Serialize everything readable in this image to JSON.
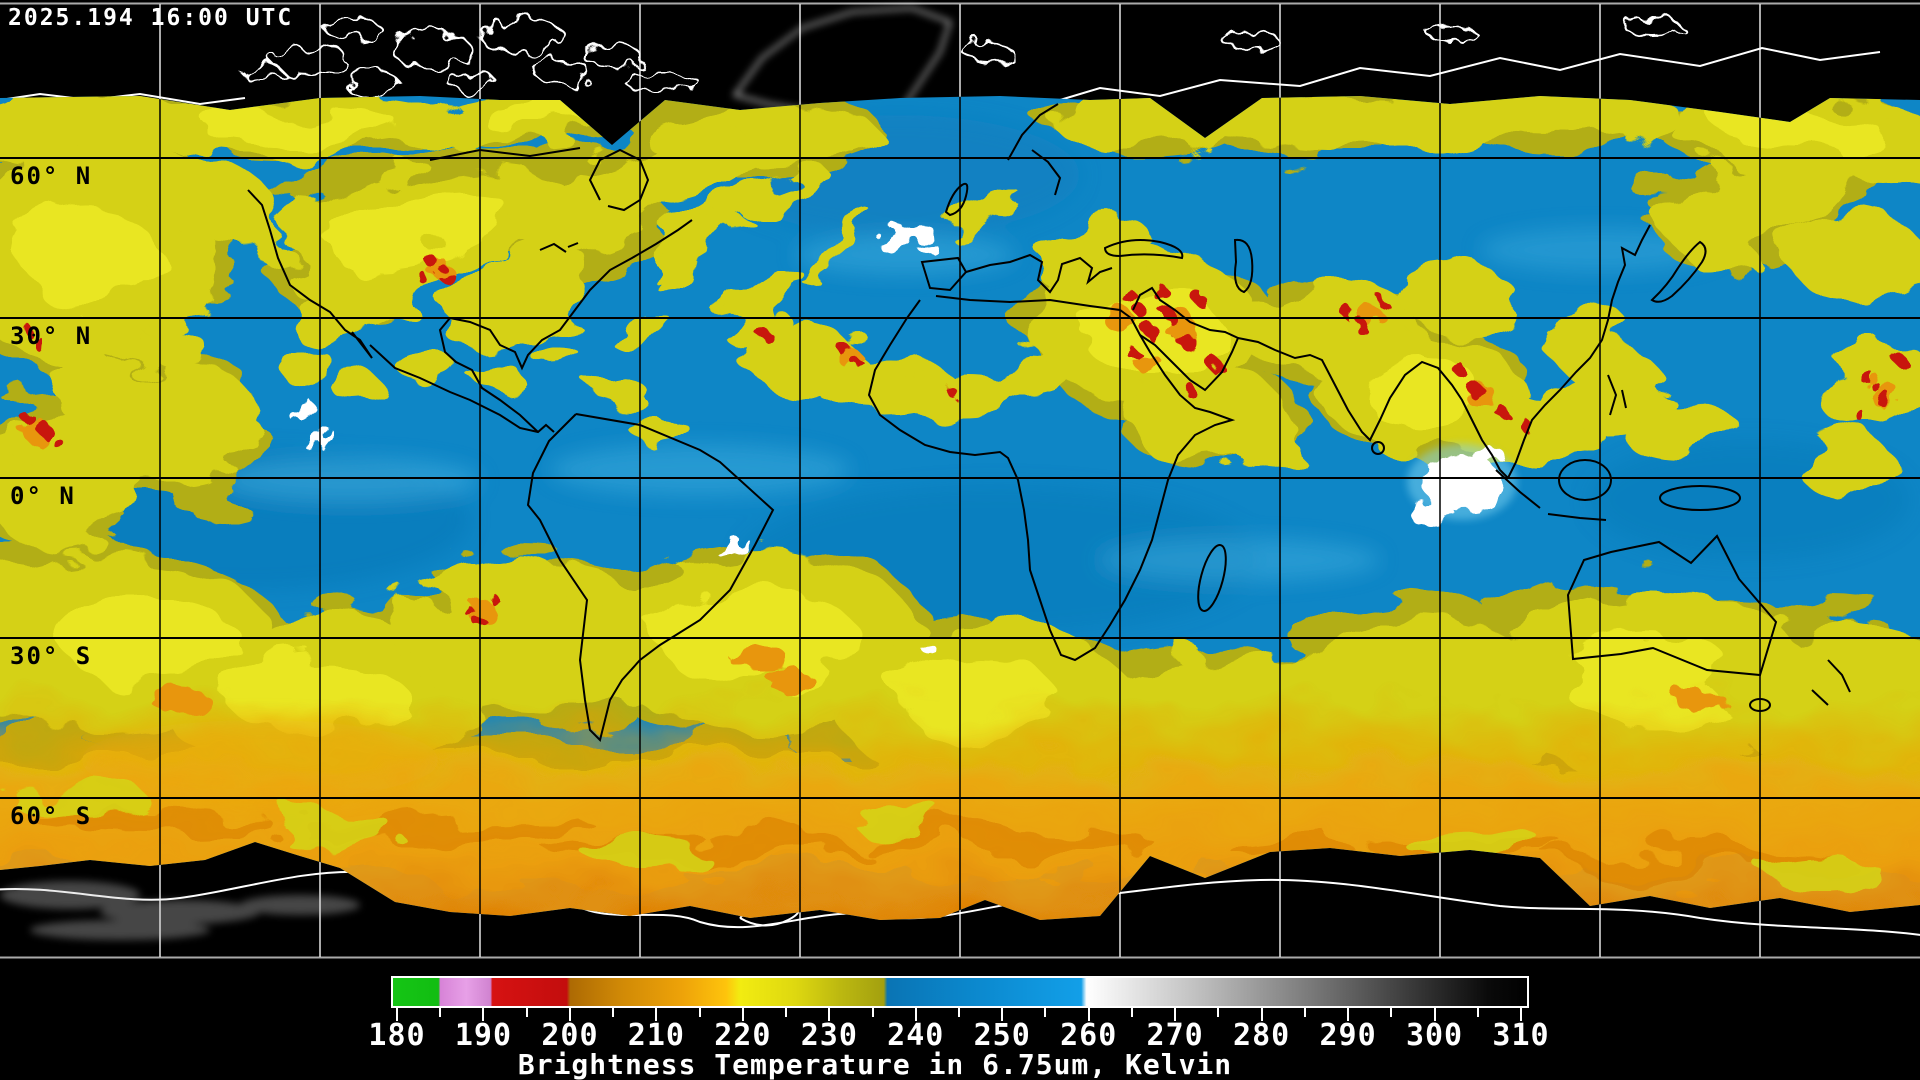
{
  "header": {
    "timestamp": "2025.194 16:00 UTC"
  },
  "map": {
    "latitude_labels": [
      "60° N",
      "30° N",
      "0° N",
      "30° S",
      "60° S"
    ],
    "grid": {
      "lon_step_deg": 30,
      "lat_step_deg": 30
    }
  },
  "colorbar": {
    "caption": "Brightness Temperature in 6.75um, Kelvin",
    "units": "Kelvin",
    "min": 180,
    "max": 310,
    "minor_tick_step": 5,
    "major_tick_step": 10,
    "major_tick_labels": [
      "180",
      "190",
      "200",
      "210",
      "220",
      "230",
      "240",
      "250",
      "260",
      "270",
      "280",
      "290",
      "300",
      "310"
    ],
    "gradient_stops": [
      {
        "value": 179.4,
        "color": "#15c515"
      },
      {
        "value": 184.8,
        "color": "#12bd12"
      },
      {
        "value": 185.0,
        "color": "#d783d7"
      },
      {
        "value": 188.0,
        "color": "#e7a0e7"
      },
      {
        "value": 190.8,
        "color": "#d083d0"
      },
      {
        "value": 191.0,
        "color": "#d61212"
      },
      {
        "value": 199.6,
        "color": "#c30d0d"
      },
      {
        "value": 200.0,
        "color": "#ad6a04"
      },
      {
        "value": 206.0,
        "color": "#d18a06"
      },
      {
        "value": 213.0,
        "color": "#eea309"
      },
      {
        "value": 218.0,
        "color": "#fec40c"
      },
      {
        "value": 219.6,
        "color": "#f2ec11"
      },
      {
        "value": 226.0,
        "color": "#ded810"
      },
      {
        "value": 231.0,
        "color": "#bdb910"
      },
      {
        "value": 236.2,
        "color": "#a3a00f"
      },
      {
        "value": 236.6,
        "color": "#0a74b4"
      },
      {
        "value": 246.0,
        "color": "#0b87cc"
      },
      {
        "value": 259.0,
        "color": "#129fe8"
      },
      {
        "value": 259.6,
        "color": "#ffffff"
      },
      {
        "value": 272.0,
        "color": "#c2c2c2"
      },
      {
        "value": 285.0,
        "color": "#7c7c7c"
      },
      {
        "value": 297.0,
        "color": "#3a3a3a"
      },
      {
        "value": 306.0,
        "color": "#0a0a0a"
      },
      {
        "value": 310.9,
        "color": "#000000"
      }
    ]
  },
  "palette": {
    "space_black": "#000000",
    "ocean_blue": "#0e86c6",
    "cloud_yellow": "#d5d113",
    "cloud_bright_yellow": "#eeec28",
    "cloud_olive": "#b2ae15",
    "cloud_orange": "#e8960a",
    "cloud_red": "#c81408",
    "cold_white": "#ffffff",
    "coastline_on_data": "#000000",
    "coastline_on_space": "#ffffff",
    "grid_on_data": "#000000",
    "grid_on_space": "#e6e6e6",
    "label_text": "#ffffff"
  }
}
